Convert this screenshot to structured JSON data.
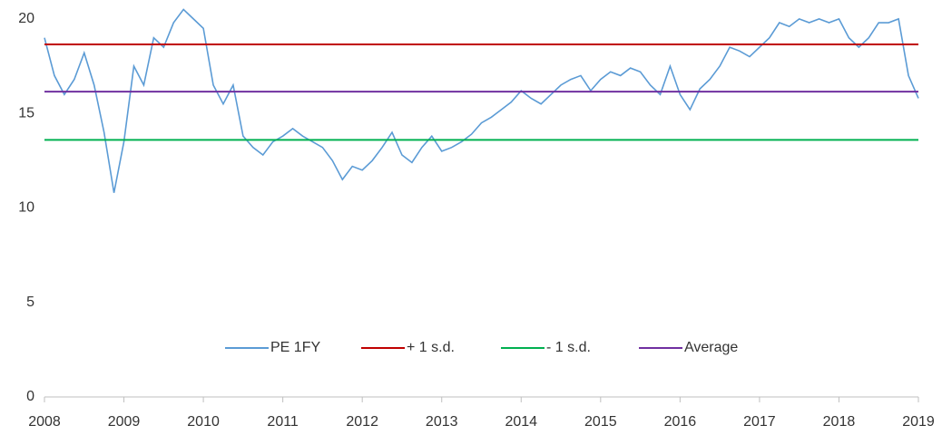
{
  "chart_data": {
    "type": "line",
    "xlim": [
      2008,
      2019
    ],
    "xticks": [
      2008,
      2009,
      2010,
      2011,
      2012,
      2013,
      2014,
      2015,
      2016,
      2017,
      2018,
      2019
    ],
    "ylim": [
      0,
      21
    ],
    "yticks": [
      0,
      5,
      10,
      15,
      20
    ],
    "legend": "bottom",
    "series": [
      {
        "name": "PE 1FY",
        "color": "#5b9bd5",
        "x": [
          2008,
          2008.125,
          2008.25,
          2008.375,
          2008.5,
          2008.625,
          2008.75,
          2008.875,
          2009,
          2009.125,
          2009.25,
          2009.375,
          2009.5,
          2009.625,
          2009.75,
          2009.875,
          2010,
          2010.125,
          2010.25,
          2010.375,
          2010.5,
          2010.625,
          2010.75,
          2010.875,
          2011,
          2011.125,
          2011.25,
          2011.375,
          2011.5,
          2011.625,
          2011.75,
          2011.875,
          2012,
          2012.125,
          2012.25,
          2012.375,
          2012.5,
          2012.625,
          2012.75,
          2012.875,
          2013,
          2013.125,
          2013.25,
          2013.375,
          2013.5,
          2013.625,
          2013.75,
          2013.875,
          2014,
          2014.125,
          2014.25,
          2014.375,
          2014.5,
          2014.625,
          2014.75,
          2014.875,
          2015,
          2015.125,
          2015.25,
          2015.375,
          2015.5,
          2015.625,
          2015.75,
          2015.875,
          2016,
          2016.125,
          2016.25,
          2016.375,
          2016.5,
          2016.625,
          2016.75,
          2016.875,
          2017,
          2017.125,
          2017.25,
          2017.375,
          2017.5,
          2017.625,
          2017.75,
          2017.875,
          2018,
          2018.125,
          2018.25,
          2018.375,
          2018.5,
          2018.625,
          2018.75,
          2018.875,
          2019
        ],
        "values": [
          19.0,
          17.0,
          16.0,
          16.8,
          18.2,
          16.5,
          14.0,
          10.8,
          13.5,
          17.5,
          16.5,
          19.0,
          18.5,
          19.8,
          20.5,
          20.0,
          19.5,
          16.5,
          15.5,
          16.5,
          13.8,
          13.2,
          12.8,
          13.5,
          13.8,
          14.2,
          13.8,
          13.5,
          13.2,
          12.5,
          11.5,
          12.2,
          12.0,
          12.5,
          13.2,
          14.0,
          12.8,
          12.4,
          13.2,
          13.8,
          13.0,
          13.2,
          13.5,
          13.9,
          14.5,
          14.8,
          15.2,
          15.6,
          16.2,
          15.8,
          15.5,
          16.0,
          16.5,
          16.8,
          17.0,
          16.2,
          16.8,
          17.2,
          17.0,
          17.4,
          17.2,
          16.5,
          16.0,
          17.5,
          16.0,
          15.2,
          16.3,
          16.8,
          17.5,
          18.5,
          18.3,
          18.0,
          18.5,
          19.0,
          19.8,
          19.6,
          20.0,
          19.8,
          20.0,
          19.8,
          20.0,
          19.0,
          18.5,
          19.0,
          19.8,
          19.8,
          20.0,
          17.0,
          15.8
        ]
      },
      {
        "name": "+ 1 s.d.",
        "color": "#c00000",
        "x": [
          2008,
          2019
        ],
        "values": [
          18.65,
          18.65
        ]
      },
      {
        "name": "- 1 s.d.",
        "color": "#00b050",
        "x": [
          2008,
          2019
        ],
        "values": [
          13.6,
          13.6
        ]
      },
      {
        "name": "Average",
        "color": "#7030a0",
        "x": [
          2008,
          2019
        ],
        "values": [
          16.15,
          16.15
        ]
      }
    ]
  }
}
